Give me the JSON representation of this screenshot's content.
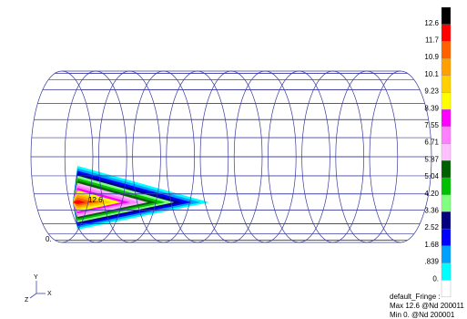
{
  "legend": {
    "labels": [
      "12.6",
      "11.7",
      "10.9",
      "10.1",
      "9.23",
      "8.39",
      "7.55",
      "6.71",
      "5.87",
      "5.04",
      "4.20",
      "3.36",
      "2.52",
      "1.68",
      ".839",
      "0."
    ]
  },
  "plot": {
    "max_label": "12.6",
    "min_label": "0."
  },
  "triad": {
    "y": "Y",
    "x": "X",
    "z": "Z"
  },
  "info": {
    "title": "default_Fringe :",
    "max": "Max 12.6 @Nd 200011",
    "min": "Min 0. @Nd 200001"
  }
}
